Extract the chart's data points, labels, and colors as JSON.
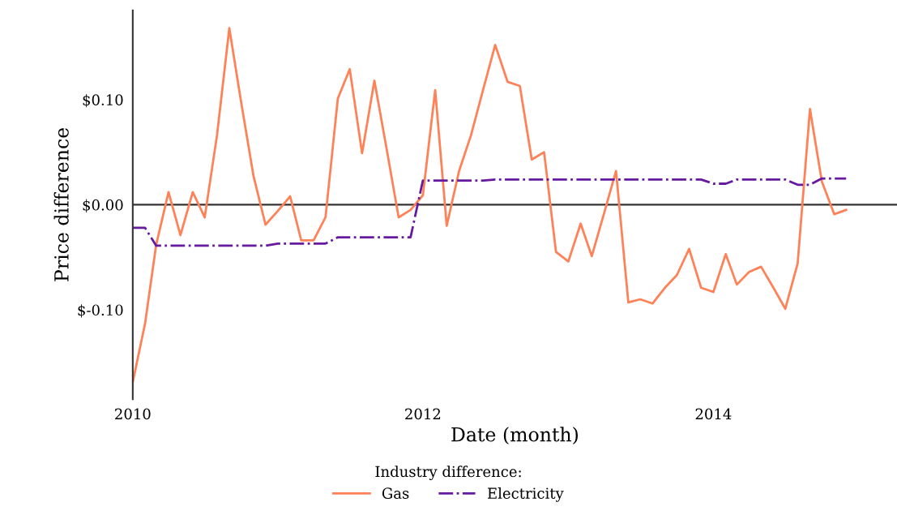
{
  "chart_data": {
    "type": "line",
    "xlabel": "Date (month)",
    "ylabel": "Price difference",
    "legend_title": "Industry difference:",
    "legend": "bottom",
    "grid": false,
    "marker": "none",
    "x": [
      "2010-01",
      "2010-02",
      "2010-03",
      "2010-04",
      "2010-05",
      "2010-06",
      "2010-07",
      "2010-08",
      "2010-09",
      "2010-10",
      "2010-11",
      "2010-12",
      "2011-01",
      "2011-02",
      "2011-03",
      "2011-04",
      "2011-05",
      "2011-06",
      "2011-07",
      "2011-08",
      "2011-09",
      "2011-10",
      "2011-11",
      "2011-12",
      "2012-01",
      "2012-02",
      "2012-03",
      "2012-04",
      "2012-05",
      "2012-06",
      "2012-07",
      "2012-08",
      "2012-09",
      "2012-10",
      "2012-11",
      "2012-12",
      "2013-01",
      "2013-02",
      "2013-03",
      "2013-04",
      "2013-05",
      "2013-06",
      "2013-07",
      "2013-08",
      "2013-09",
      "2013-10",
      "2013-11",
      "2013-12",
      "2014-01",
      "2014-02",
      "2014-03",
      "2014-04",
      "2014-05",
      "2014-06",
      "2014-07",
      "2014-08",
      "2014-09",
      "2014-10",
      "2014-11",
      "2014-12"
    ],
    "xlim": [
      "2010-01-01",
      "2015-04-08"
    ],
    "xticks": [
      {
        "value": "2010-01-01",
        "label": "2010"
      },
      {
        "value": "2012-01-01",
        "label": "2012"
      },
      {
        "value": "2014-01-01",
        "label": "2014"
      }
    ],
    "ylim": [
      -0.185,
      0.185
    ],
    "yticks": [
      {
        "value": -0.1,
        "label": "$-0.10"
      },
      {
        "value": 0,
        "label": "$0.00"
      },
      {
        "value": 0.1,
        "label": "$0.10"
      }
    ],
    "ref_lines": [
      {
        "axis": "y",
        "value": 0,
        "color": "#333333",
        "line_style": "solid"
      }
    ],
    "series": [
      {
        "name": "Gas",
        "color": "#ff8157",
        "line_style": "solid",
        "values": [
          -0.169,
          -0.113,
          -0.038,
          0.012,
          -0.029,
          0.012,
          -0.012,
          0.066,
          0.168,
          0.097,
          0.027,
          -0.019,
          -0.006,
          0.008,
          -0.034,
          -0.034,
          -0.012,
          0.101,
          0.129,
          0.049,
          0.118,
          0.055,
          -0.012,
          -0.005,
          0.009,
          0.109,
          -0.02,
          0.032,
          0.066,
          0.11,
          0.152,
          0.117,
          0.113,
          0.043,
          0.05,
          -0.045,
          -0.054,
          -0.018,
          -0.049,
          -0.008,
          0.032,
          -0.093,
          -0.09,
          -0.094,
          -0.079,
          -0.067,
          -0.042,
          -0.079,
          -0.083,
          -0.047,
          -0.076,
          -0.064,
          -0.059,
          -0.079,
          -0.099,
          -0.056,
          0.091,
          0.022,
          -0.009,
          -0.005
        ]
      },
      {
        "name": "Electricity",
        "color": "#661aa0",
        "line_style": "dashdot",
        "values": [
          -0.022,
          -0.022,
          -0.039,
          -0.039,
          -0.039,
          -0.039,
          -0.039,
          -0.039,
          -0.039,
          -0.039,
          -0.039,
          -0.039,
          -0.037,
          -0.037,
          -0.037,
          -0.037,
          -0.037,
          -0.031,
          -0.031,
          -0.031,
          -0.031,
          -0.031,
          -0.031,
          -0.031,
          0.023,
          0.023,
          0.023,
          0.023,
          0.023,
          0.023,
          0.024,
          0.024,
          0.024,
          0.024,
          0.024,
          0.024,
          0.024,
          0.024,
          0.024,
          0.024,
          0.024,
          0.024,
          0.024,
          0.024,
          0.024,
          0.024,
          0.024,
          0.024,
          0.02,
          0.02,
          0.024,
          0.024,
          0.024,
          0.024,
          0.024,
          0.019,
          0.019,
          0.025,
          0.025,
          0.025
        ]
      }
    ]
  }
}
